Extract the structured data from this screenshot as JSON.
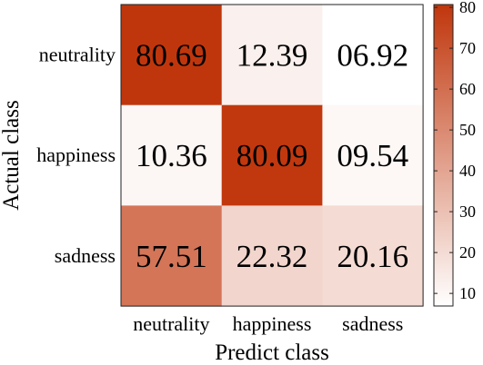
{
  "chart_data": {
    "type": "heatmap",
    "title": "",
    "xlabel": "Predict class",
    "ylabel": "Actual class",
    "x_categories": [
      "neutrality",
      "happiness",
      "sadness"
    ],
    "y_categories": [
      "neutrality",
      "happiness",
      "sadness"
    ],
    "values": [
      [
        80.69,
        12.39,
        6.92
      ],
      [
        10.36,
        80.09,
        9.54
      ],
      [
        57.51,
        22.32,
        20.16
      ]
    ],
    "value_labels": [
      [
        "80.69",
        "12.39",
        "06.92"
      ],
      [
        "10.36",
        "80.09",
        "09.54"
      ],
      [
        "57.51",
        "22.32",
        "20.16"
      ]
    ],
    "colorbar": {
      "range": [
        6.92,
        80.69
      ],
      "ticks": [
        10,
        20,
        30,
        40,
        50,
        60,
        70,
        80
      ],
      "tick_labels": [
        "10",
        "20",
        "30",
        "40",
        "50",
        "60",
        "70",
        "80"
      ],
      "color_low": "#ffffff",
      "color_high": "#c0360c"
    },
    "grid": false,
    "legend": "colorbar-right"
  }
}
